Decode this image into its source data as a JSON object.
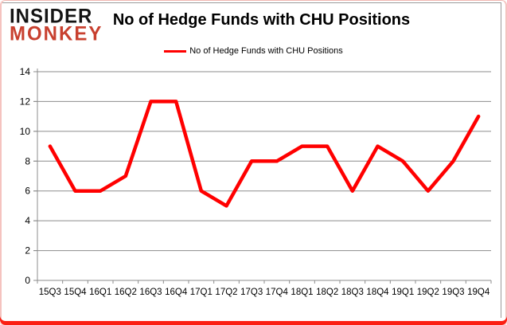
{
  "logo": {
    "line1": "INSIDER",
    "line2": "MONKEY",
    "accent_color": "#c8402f"
  },
  "header": {
    "title": "No of Hedge Funds with CHU Positions"
  },
  "legend": {
    "label": "No of Hedge Funds with CHU Positions",
    "line_color": "#ff0000"
  },
  "colors": {
    "series": "#ff0000",
    "grid": "#8c8c8c",
    "axis": "#8c8c8c",
    "label_text": "#000000",
    "frame_bottom": "#fb1f13",
    "frame_side": "#f5c3bf"
  },
  "chart_data": {
    "type": "line",
    "title": "No of Hedge Funds with CHU Positions",
    "categories": [
      "15Q3",
      "15Q4",
      "16Q1",
      "16Q2",
      "16Q3",
      "16Q4",
      "17Q1",
      "17Q2",
      "17Q3",
      "17Q4",
      "18Q1",
      "18Q2",
      "18Q3",
      "18Q4",
      "19Q1",
      "19Q2",
      "19Q3",
      "19Q4"
    ],
    "series": [
      {
        "name": "No of Hedge Funds with CHU Positions",
        "color": "#ff0000",
        "values": [
          9,
          6,
          6,
          7,
          12,
          12,
          6,
          5,
          8,
          8,
          9,
          9,
          6,
          9,
          8,
          6,
          8,
          11
        ]
      }
    ],
    "xlabel": "",
    "ylabel": "",
    "ylim": [
      0,
      14
    ],
    "ytick_step": 2,
    "grid": true,
    "legend_position": "top-center"
  }
}
